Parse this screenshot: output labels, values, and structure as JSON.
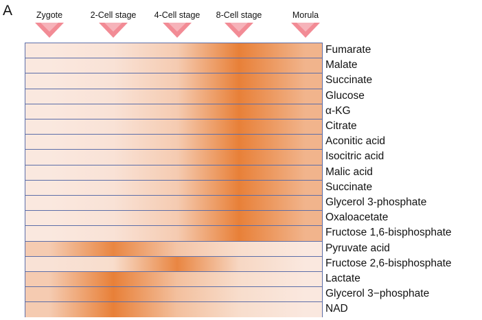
{
  "panel_label": "A",
  "chart_data": {
    "type": "heatmap",
    "x": [
      "Zygote",
      "2-Cell stage",
      "4-Cell stage",
      "8-Cell stage",
      "Morula"
    ],
    "rows": [
      "Fumarate",
      "Malate",
      "Succinate",
      "Glucose",
      "α-KG",
      "Citrate",
      "Aconitic acid",
      "Isocitric acid",
      "Malic acid",
      "Succinate",
      "Glycerol 3-phosphate",
      "Oxaloacetate",
      "Fructose 1,6-bisphosphate",
      "Pyruvate acid",
      "Fructose 2,6-bisphosphate",
      "Lactate",
      "Glycerol 3−phosphate",
      "NAD"
    ],
    "values": [
      [
        0.05,
        0.1,
        0.3,
        0.95,
        0.5
      ],
      [
        0.05,
        0.1,
        0.3,
        0.95,
        0.5
      ],
      [
        0.05,
        0.1,
        0.3,
        0.95,
        0.5
      ],
      [
        0.05,
        0.1,
        0.3,
        0.95,
        0.5
      ],
      [
        0.05,
        0.1,
        0.3,
        0.95,
        0.5
      ],
      [
        0.05,
        0.1,
        0.3,
        0.95,
        0.5
      ],
      [
        0.05,
        0.1,
        0.3,
        0.95,
        0.5
      ],
      [
        0.05,
        0.1,
        0.3,
        0.95,
        0.5
      ],
      [
        0.05,
        0.1,
        0.3,
        0.95,
        0.5
      ],
      [
        0.05,
        0.1,
        0.3,
        0.95,
        0.5
      ],
      [
        0.05,
        0.1,
        0.3,
        0.95,
        0.5
      ],
      [
        0.05,
        0.1,
        0.3,
        0.95,
        0.5
      ],
      [
        0.05,
        0.1,
        0.3,
        0.95,
        0.5
      ],
      [
        0.3,
        0.9,
        0.35,
        0.15,
        0.05
      ],
      [
        0.1,
        0.15,
        0.9,
        0.2,
        0.05
      ],
      [
        0.3,
        0.95,
        0.4,
        0.15,
        0.05
      ],
      [
        0.3,
        0.95,
        0.4,
        0.15,
        0.05
      ],
      [
        0.3,
        0.95,
        0.4,
        0.15,
        0.05
      ]
    ],
    "colors": {
      "low": "#fbeee8",
      "high": "#e77a2f",
      "marker": "#f28b95",
      "grid": "#5b6da8"
    }
  }
}
